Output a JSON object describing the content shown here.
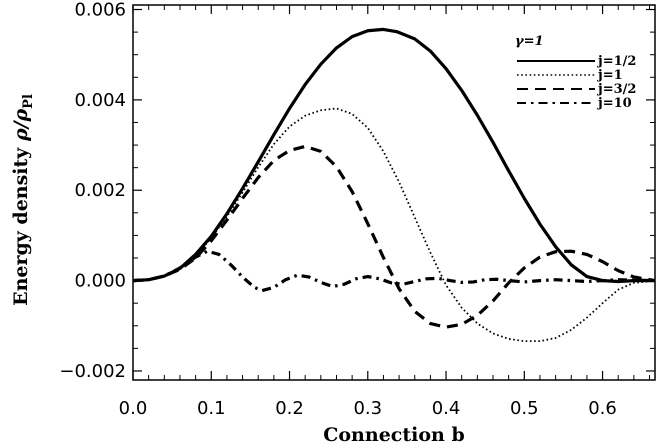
{
  "chart_data": {
    "type": "line",
    "xlabel": "Connection b",
    "ylabel_text": "Energy density ",
    "ylabel_symbol": "ρ/ρ",
    "ylabel_subscript": "Pl",
    "xlim": [
      0.0,
      0.667
    ],
    "ylim": [
      -0.0022,
      0.0061
    ],
    "xticks": [
      0.0,
      0.1,
      0.2,
      0.3,
      0.4,
      0.5,
      0.6
    ],
    "xtick_labels": [
      "0.0",
      "0.1",
      "0.2",
      "0.3",
      "0.4",
      "0.5",
      "0.6"
    ],
    "yticks": [
      -0.002,
      0.0,
      0.002,
      0.004,
      0.006
    ],
    "ytick_labels": [
      "−0.002",
      "0.000",
      "0.002",
      "0.004",
      "0.006"
    ],
    "grid": false,
    "legend_position": "top-right",
    "legend_title": "γ=1",
    "series": [
      {
        "name": "j=1/2",
        "style": "solid",
        "points": [
          [
            0.0,
            0.0
          ],
          [
            0.02,
            2e-05
          ],
          [
            0.04,
            0.0001
          ],
          [
            0.06,
            0.00027
          ],
          [
            0.08,
            0.00058
          ],
          [
            0.1,
            0.00098
          ],
          [
            0.12,
            0.00148
          ],
          [
            0.14,
            0.00204
          ],
          [
            0.16,
            0.00263
          ],
          [
            0.18,
            0.00323
          ],
          [
            0.2,
            0.00381
          ],
          [
            0.22,
            0.00434
          ],
          [
            0.24,
            0.00479
          ],
          [
            0.26,
            0.00515
          ],
          [
            0.28,
            0.0054
          ],
          [
            0.3,
            0.00553
          ],
          [
            0.32,
            0.00556
          ],
          [
            0.337,
            0.00551
          ],
          [
            0.36,
            0.00535
          ],
          [
            0.38,
            0.00508
          ],
          [
            0.4,
            0.00469
          ],
          [
            0.42,
            0.00421
          ],
          [
            0.44,
            0.00366
          ],
          [
            0.46,
            0.00306
          ],
          [
            0.48,
            0.00243
          ],
          [
            0.5,
            0.00182
          ],
          [
            0.52,
            0.00125
          ],
          [
            0.54,
            0.00075
          ],
          [
            0.56,
            0.00035
          ],
          [
            0.58,
            9e-05
          ],
          [
            0.6,
            0.0
          ],
          [
            0.62,
            -2e-05
          ],
          [
            0.64,
            0.0
          ],
          [
            0.667,
            0.0
          ]
        ]
      },
      {
        "name": "j=1",
        "style": "dotted",
        "points": [
          [
            0.0,
            0.0
          ],
          [
            0.02,
            2e-05
          ],
          [
            0.04,
            0.0001
          ],
          [
            0.06,
            0.00026
          ],
          [
            0.08,
            0.00055
          ],
          [
            0.1,
            0.00094
          ],
          [
            0.12,
            0.00142
          ],
          [
            0.14,
            0.00195
          ],
          [
            0.16,
            0.00251
          ],
          [
            0.18,
            0.00302
          ],
          [
            0.2,
            0.00341
          ],
          [
            0.22,
            0.00365
          ],
          [
            0.24,
            0.00377
          ],
          [
            0.26,
            0.00381
          ],
          [
            0.28,
            0.00369
          ],
          [
            0.3,
            0.00338
          ],
          [
            0.32,
            0.00286
          ],
          [
            0.34,
            0.00218
          ],
          [
            0.36,
            0.0014
          ],
          [
            0.38,
            0.00062
          ],
          [
            0.4,
            -0.0001
          ],
          [
            0.42,
            -0.0006
          ],
          [
            0.44,
            -0.00095
          ],
          [
            0.46,
            -0.00117
          ],
          [
            0.48,
            -0.00129
          ],
          [
            0.5,
            -0.00134
          ],
          [
            0.52,
            -0.00134
          ],
          [
            0.54,
            -0.00127
          ],
          [
            0.56,
            -0.00109
          ],
          [
            0.58,
            -0.00082
          ],
          [
            0.6,
            -0.0005
          ],
          [
            0.62,
            -0.0002
          ],
          [
            0.64,
            -5e-05
          ],
          [
            0.667,
            0.0
          ]
        ]
      },
      {
        "name": "j=3/2",
        "style": "dashed",
        "points": [
          [
            0.0,
            0.0
          ],
          [
            0.02,
            2e-05
          ],
          [
            0.04,
            0.0001
          ],
          [
            0.06,
            0.00025
          ],
          [
            0.08,
            0.0005
          ],
          [
            0.1,
            0.00088
          ],
          [
            0.12,
            0.00134
          ],
          [
            0.14,
            0.00182
          ],
          [
            0.16,
            0.00228
          ],
          [
            0.18,
            0.00266
          ],
          [
            0.2,
            0.00288
          ],
          [
            0.22,
            0.00297
          ],
          [
            0.24,
            0.00286
          ],
          [
            0.26,
            0.00252
          ],
          [
            0.28,
            0.00197
          ],
          [
            0.3,
            0.00126
          ],
          [
            0.32,
            0.00051
          ],
          [
            0.34,
            -0.00018
          ],
          [
            0.36,
            -0.00068
          ],
          [
            0.38,
            -0.00095
          ],
          [
            0.4,
            -0.00103
          ],
          [
            0.42,
            -0.00097
          ],
          [
            0.44,
            -0.00077
          ],
          [
            0.46,
            -0.00045
          ],
          [
            0.48,
            -5e-05
          ],
          [
            0.5,
            0.00028
          ],
          [
            0.52,
            0.00052
          ],
          [
            0.54,
            0.00064
          ],
          [
            0.56,
            0.00065
          ],
          [
            0.58,
            0.00058
          ],
          [
            0.6,
            0.00042
          ],
          [
            0.62,
            0.00022
          ],
          [
            0.64,
            8e-05
          ],
          [
            0.667,
            0.0
          ]
        ]
      },
      {
        "name": "j=10",
        "style": "dashdot",
        "points": [
          [
            0.0,
            0.0
          ],
          [
            0.02,
            2e-05
          ],
          [
            0.04,
            0.0001
          ],
          [
            0.06,
            0.00028
          ],
          [
            0.08,
            0.00052
          ],
          [
            0.095,
            0.00065
          ],
          [
            0.11,
            0.00058
          ],
          [
            0.125,
            0.00035
          ],
          [
            0.14,
            8e-05
          ],
          [
            0.155,
            -0.00015
          ],
          [
            0.165,
            -0.00022
          ],
          [
            0.18,
            -0.00015
          ],
          [
            0.195,
            2e-05
          ],
          [
            0.21,
            0.00012
          ],
          [
            0.225,
            8e-05
          ],
          [
            0.24,
            -4e-05
          ],
          [
            0.255,
            -0.00013
          ],
          [
            0.27,
            -8e-05
          ],
          [
            0.285,
            4e-05
          ],
          [
            0.3,
            9e-05
          ],
          [
            0.315,
            4e-05
          ],
          [
            0.33,
            -5e-05
          ],
          [
            0.345,
            -8e-05
          ],
          [
            0.36,
            -2e-05
          ],
          [
            0.375,
            4e-05
          ],
          [
            0.39,
            5e-05
          ],
          [
            0.405,
            0.0
          ],
          [
            0.42,
            -4e-05
          ],
          [
            0.435,
            -3e-05
          ],
          [
            0.45,
            2e-05
          ],
          [
            0.465,
            3e-05
          ],
          [
            0.48,
            0.0
          ],
          [
            0.5,
            -3e-05
          ],
          [
            0.52,
            0.0
          ],
          [
            0.54,
            2e-05
          ],
          [
            0.56,
            0.0
          ],
          [
            0.58,
            -2e-05
          ],
          [
            0.6,
            0.0
          ],
          [
            0.62,
            2e-05
          ],
          [
            0.64,
            1e-05
          ],
          [
            0.667,
            0.0
          ]
        ]
      }
    ]
  }
}
